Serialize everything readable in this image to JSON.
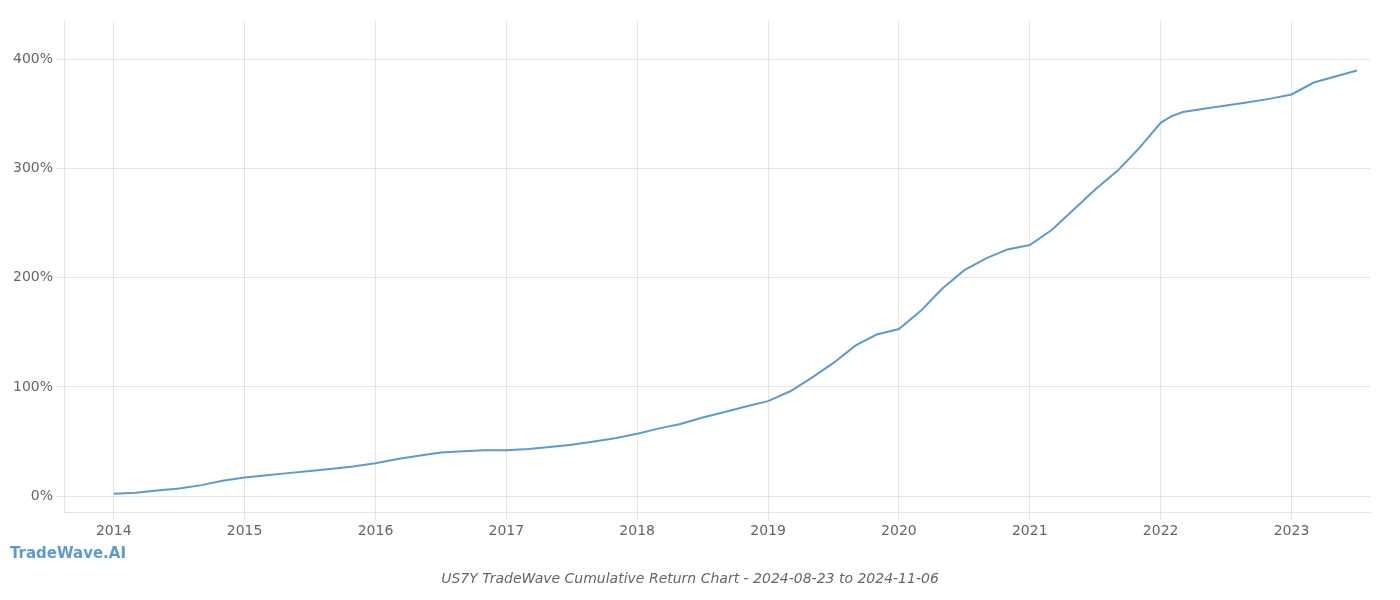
{
  "chart_data": {
    "type": "line",
    "title": "US7Y TradeWave Cumulative Return Chart - 2024-08-23 to 2024-11-06",
    "annotations": [
      "TradeWave.AI"
    ],
    "x": [
      2014.0,
      2014.17,
      2014.33,
      2014.5,
      2014.67,
      2014.83,
      2015.0,
      2015.17,
      2015.33,
      2015.5,
      2015.67,
      2015.83,
      2016.0,
      2016.17,
      2016.33,
      2016.5,
      2016.67,
      2016.83,
      2017.0,
      2017.17,
      2017.33,
      2017.5,
      2017.67,
      2017.83,
      2018.0,
      2018.17,
      2018.33,
      2018.5,
      2018.67,
      2018.83,
      2019.0,
      2019.17,
      2019.33,
      2019.5,
      2019.67,
      2019.83,
      2020.0,
      2020.17,
      2020.33,
      2020.5,
      2020.67,
      2020.83,
      2021.0,
      2021.17,
      2021.33,
      2021.5,
      2021.67,
      2021.83,
      2022.0,
      2022.08,
      2022.17,
      2022.33,
      2022.5,
      2022.67,
      2022.83,
      2023.0,
      2023.17,
      2023.5
    ],
    "values": [
      2,
      3,
      5,
      7,
      10,
      14,
      17,
      19,
      21,
      23,
      25,
      27,
      30,
      34,
      37,
      40,
      41,
      42,
      42,
      43,
      45,
      47,
      50,
      53,
      57,
      62,
      66,
      72,
      77,
      82,
      87,
      96,
      108,
      122,
      138,
      148,
      153,
      170,
      190,
      207,
      218,
      226,
      230,
      244,
      262,
      281,
      298,
      318,
      342,
      348,
      352,
      355,
      358,
      361,
      364,
      368,
      379,
      390
    ],
    "color": "#5b9bd5",
    "xlim": [
      2013.62,
      2023.6
    ],
    "ylim": [
      -15,
      435
    ],
    "xticks": [
      2014,
      2015,
      2016,
      2017,
      2018,
      2019,
      2020,
      2021,
      2022,
      2023
    ],
    "yticks": [
      {
        "value": 0,
        "label": "0%"
      },
      {
        "value": 100,
        "label": "100%"
      },
      {
        "value": 200,
        "label": "200%"
      },
      {
        "value": 300,
        "label": "300%"
      },
      {
        "value": 400,
        "label": "400%"
      }
    ],
    "grid": true
  }
}
